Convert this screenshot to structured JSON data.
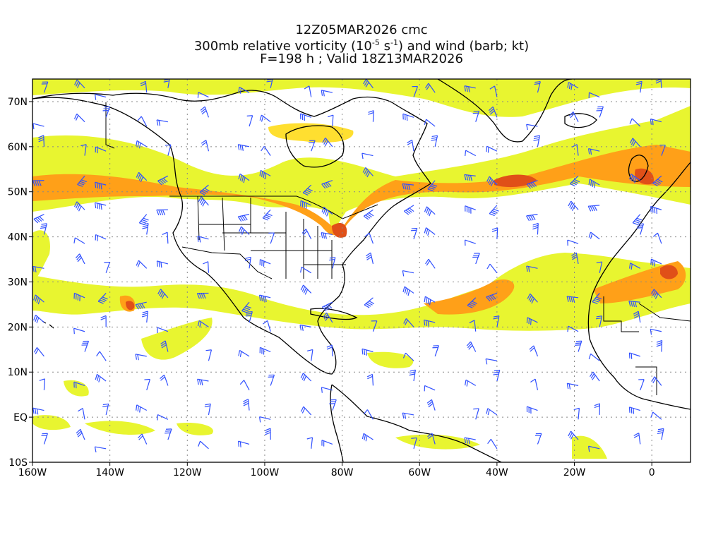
{
  "titles": {
    "line1": "12Z05MAR2026 cmc",
    "line2_prefix": "300mb relative vorticity (10",
    "line2_exp1": "-5",
    "line2_mid": " s",
    "line2_exp2": "-1",
    "line2_suffix": ") and wind (barb; kt)",
    "line3": "F=198 h ; Valid 18Z13MAR2026"
  },
  "map": {
    "lon_range": [
      -160,
      10
    ],
    "lat_range": [
      -10,
      75
    ],
    "lat_ticks": [
      {
        "lat": 70,
        "label": "70N"
      },
      {
        "lat": 60,
        "label": "60N"
      },
      {
        "lat": 50,
        "label": "50N"
      },
      {
        "lat": 40,
        "label": "40N"
      },
      {
        "lat": 30,
        "label": "30N"
      },
      {
        "lat": 20,
        "label": "20N"
      },
      {
        "lat": 10,
        "label": "10N"
      },
      {
        "lat": 0,
        "label": "EQ"
      },
      {
        "lat": -10,
        "label": "10S"
      }
    ],
    "lon_ticks": [
      {
        "lon": -160,
        "label": "160W"
      },
      {
        "lon": -140,
        "label": "140W"
      },
      {
        "lon": -120,
        "label": "120W"
      },
      {
        "lon": -100,
        "label": "100W"
      },
      {
        "lon": -80,
        "label": "80W"
      },
      {
        "lon": -60,
        "label": "60W"
      },
      {
        "lon": -40,
        "label": "40W"
      },
      {
        "lon": -20,
        "label": "20W"
      },
      {
        "lon": 0,
        "label": "0"
      }
    ],
    "colors": {
      "level1": "#e8f530",
      "level2": "#ffdf30",
      "level3": "#ffc020",
      "level4": "#ffa018",
      "level5": "#f07820",
      "level6": "#e05018",
      "barb": "#3050ff",
      "coast": "#000000",
      "grid": "#888888"
    }
  }
}
